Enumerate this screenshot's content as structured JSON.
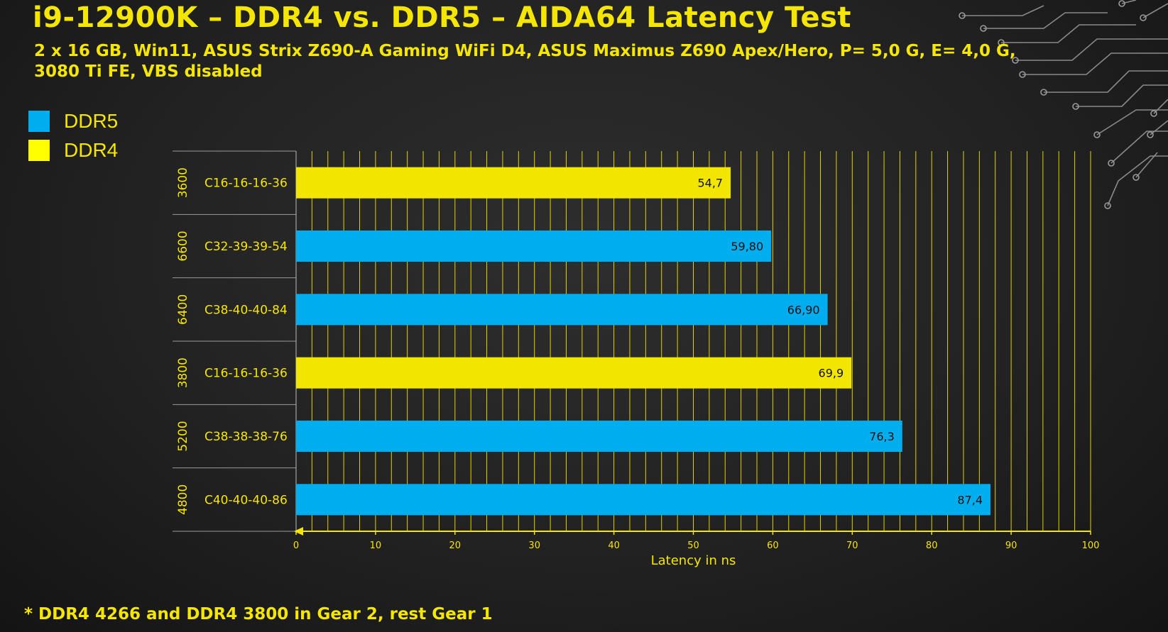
{
  "title": "i9-12900K – DDR4 vs. DDR5 – AIDA64 Latency Test",
  "subtitle": "2 x 16 GB, Win11, ASUS Strix Z690-A Gaming WiFi D4, ASUS Maximus Z690 Apex/Hero, P= 5,0 G, E= 4,0 G, 3080 Ti FE, VBS disabled",
  "legend": [
    {
      "name": "DDR5",
      "color": "#00aeef"
    },
    {
      "name": "DDR4",
      "color": "#ffff00"
    }
  ],
  "footnote": "* DDR4 4266 and DDR4 3800 in Gear 2, rest Gear 1",
  "chart_data": {
    "type": "bar",
    "orientation": "horizontal",
    "xlabel": "Latency in ns",
    "xlim": [
      0,
      100
    ],
    "xticks": [
      0,
      10,
      20,
      30,
      40,
      50,
      60,
      70,
      80,
      90,
      100
    ],
    "grid": true,
    "colors": {
      "DDR5": "#00aeef",
      "DDR4": "#f2e600"
    },
    "categories": [
      {
        "speed": "3600",
        "timing": "C16-16-16-36",
        "series": "DDR4",
        "value": 54.7,
        "label": "54,7"
      },
      {
        "speed": "6600",
        "timing": "C32-39-39-54",
        "series": "DDR5",
        "value": 59.8,
        "label": "59,80"
      },
      {
        "speed": "6400",
        "timing": "C38-40-40-84",
        "series": "DDR5",
        "value": 66.9,
        "label": "66,90"
      },
      {
        "speed": "3800",
        "timing": "C16-16-16-36",
        "series": "DDR4",
        "value": 69.9,
        "label": "69,9"
      },
      {
        "speed": "5200",
        "timing": "C38-38-38-76",
        "series": "DDR5",
        "value": 76.3,
        "label": "76,3"
      },
      {
        "speed": "4800",
        "timing": "C40-40-40-86",
        "series": "DDR5",
        "value": 87.4,
        "label": "87,4"
      }
    ]
  }
}
